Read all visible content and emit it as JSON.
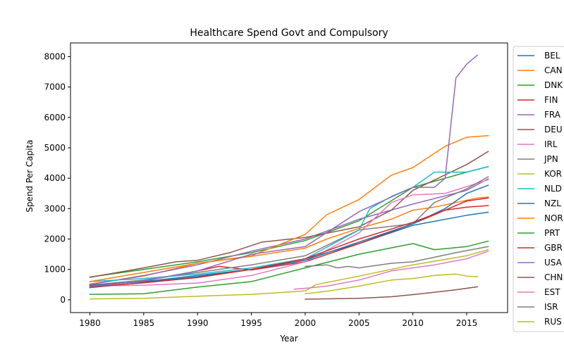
{
  "chart_data": {
    "type": "line",
    "title": "Healthcare Spend Govt and Compulsory",
    "xlabel": "Year",
    "ylabel": "Spend Per Capita",
    "xlim": [
      1978.2,
      2018.8
    ],
    "ylim": [
      -420,
      8450
    ],
    "xticks": [
      1980,
      1985,
      1990,
      1995,
      2000,
      2005,
      2010,
      2015
    ],
    "yticks": [
      0,
      1000,
      2000,
      3000,
      4000,
      5000,
      6000,
      7000,
      8000
    ],
    "grid": false,
    "legend_position": "right, outside plot",
    "series": [
      {
        "name": "BEL",
        "color": "#1f77b4",
        "x": [
          1980,
          1985,
          1990,
          1995,
          2000,
          2005,
          2010,
          2015,
          2017
        ],
        "y": [
          400,
          570,
          760,
          1000,
          1350,
          1850,
          2450,
          2780,
          2880
        ]
      },
      {
        "name": "CAN",
        "color": "#ff7f0e",
        "x": [
          1980,
          1985,
          1990,
          1995,
          2000,
          2002,
          2005,
          2008,
          2010,
          2012,
          2014,
          2016,
          2017
        ],
        "y": [
          520,
          780,
          1200,
          1430,
          1700,
          2000,
          2350,
          2650,
          2950,
          3050,
          3200,
          3350,
          3380
        ]
      },
      {
        "name": "DNK",
        "color": "#2ca02c",
        "x": [
          1980,
          1985,
          1990,
          1995,
          2000,
          2005,
          2010,
          2012,
          2015,
          2017
        ],
        "y": [
          750,
          1000,
          1250,
          1550,
          1950,
          2600,
          3700,
          3900,
          4200,
          4380
        ]
      },
      {
        "name": "FIN",
        "color": "#d62728",
        "x": [
          1980,
          1985,
          1990,
          1992,
          1995,
          2000,
          2005,
          2010,
          2015,
          2017
        ],
        "y": [
          450,
          620,
          950,
          1100,
          980,
          1250,
          1850,
          2500,
          3250,
          3350
        ]
      },
      {
        "name": "FRA",
        "color": "#9467bd",
        "x": [
          1980,
          1985,
          1990,
          1995,
          2000,
          2005,
          2010,
          2015,
          2017
        ],
        "y": [
          500,
          800,
          1150,
          1600,
          2000,
          2650,
          3150,
          3600,
          3980
        ]
      },
      {
        "name": "DEU",
        "color": "#8c564b",
        "x": [
          1980,
          1985,
          1988,
          1990,
          1993,
          1996,
          2000,
          2005,
          2008,
          2010,
          2015,
          2017
        ],
        "y": [
          740,
          1050,
          1250,
          1300,
          1550,
          1900,
          2050,
          2400,
          2950,
          3600,
          4450,
          4880
        ]
      },
      {
        "name": "IRL",
        "color": "#e377c2",
        "x": [
          1980,
          1985,
          1990,
          1995,
          2000,
          2005,
          2008,
          2010,
          2013,
          2017
        ],
        "y": [
          450,
          480,
          550,
          800,
          1250,
          2200,
          3200,
          3450,
          3500,
          3950
        ]
      },
      {
        "name": "JPN",
        "color": "#7f7f7f",
        "x": [
          1980,
          1985,
          1990,
          1995,
          2000,
          2005,
          2010,
          2012,
          2015,
          2017
        ],
        "y": [
          480,
          650,
          900,
          1150,
          1450,
          2300,
          2500,
          3200,
          3650,
          4050
        ]
      },
      {
        "name": "KOR",
        "color": "#bcbd22",
        "x": [
          1980,
          1985,
          1990,
          1995,
          2000,
          2001,
          2005,
          2010,
          2015,
          2017
        ],
        "y": [
          30,
          50,
          120,
          180,
          290,
          500,
          780,
          1150,
          1450,
          1650
        ]
      },
      {
        "name": "NLD",
        "color": "#17becf",
        "x": [
          1980,
          1985,
          1990,
          1995,
          2000,
          2005,
          2006,
          2008,
          2010,
          2012,
          2015,
          2017
        ],
        "y": [
          600,
          700,
          850,
          1050,
          1350,
          2300,
          3000,
          3400,
          3700,
          4200,
          4200,
          4380
        ]
      },
      {
        "name": "NZL",
        "color": "#1f77b4",
        "x": [
          1980,
          1985,
          1990,
          1995,
          2000,
          2005,
          2010,
          2013,
          2015,
          2017
        ],
        "y": [
          480,
          600,
          800,
          1000,
          1300,
          1900,
          2500,
          3000,
          3500,
          3770
        ]
      },
      {
        "name": "NOR",
        "color": "#ff7f0e",
        "x": [
          1980,
          1985,
          1990,
          1995,
          2000,
          2002,
          2005,
          2008,
          2010,
          2013,
          2015,
          2017
        ],
        "y": [
          600,
          900,
          1200,
          1450,
          2150,
          2800,
          3300,
          4100,
          4350,
          5050,
          5350,
          5400
        ]
      },
      {
        "name": "PRT",
        "color": "#2ca02c",
        "x": [
          1980,
          1985,
          1990,
          1995,
          2000,
          2005,
          2010,
          2012,
          2015,
          2017
        ],
        "y": [
          180,
          200,
          420,
          600,
          1050,
          1500,
          1850,
          1650,
          1750,
          1930
        ]
      },
      {
        "name": "GBR",
        "color": "#d62728",
        "x": [
          1980,
          1985,
          1990,
          1995,
          2000,
          2005,
          2010,
          2013,
          2015,
          2017
        ],
        "y": [
          420,
          560,
          730,
          1000,
          1350,
          2000,
          2550,
          2950,
          3050,
          3100
        ]
      },
      {
        "name": "USA",
        "color": "#9467bd",
        "x": [
          1980,
          1985,
          1990,
          1995,
          2000,
          2005,
          2010,
          2012,
          2013,
          2014,
          2015,
          2016
        ],
        "y": [
          440,
          620,
          950,
          1500,
          1750,
          2900,
          3700,
          3700,
          4000,
          7300,
          7750,
          8050
        ]
      },
      {
        "name": "CHN",
        "color": "#8c564b",
        "x": [
          2000,
          2005,
          2008,
          2010,
          2012,
          2014,
          2016
        ],
        "y": [
          20,
          50,
          100,
          170,
          250,
          330,
          430
        ]
      },
      {
        "name": "EST",
        "color": "#e377c2",
        "x": [
          1999,
          2000,
          2002,
          2005,
          2008,
          2010,
          2012,
          2015,
          2017
        ],
        "y": [
          350,
          380,
          450,
          650,
          950,
          1050,
          1150,
          1350,
          1600
        ]
      },
      {
        "name": "ISR",
        "color": "#7f7f7f",
        "x": [
          2000,
          2002,
          2003,
          2004,
          2005,
          2008,
          2010,
          2012,
          2014,
          2017
        ],
        "y": [
          1100,
          1150,
          1050,
          1100,
          1050,
          1200,
          1250,
          1400,
          1550,
          1750
        ]
      },
      {
        "name": "RUS",
        "color": "#bcbd22",
        "x": [
          2000,
          2002,
          2005,
          2008,
          2010,
          2012,
          2014,
          2015,
          2016
        ],
        "y": [
          200,
          280,
          450,
          650,
          700,
          800,
          850,
          780,
          760
        ]
      }
    ]
  }
}
